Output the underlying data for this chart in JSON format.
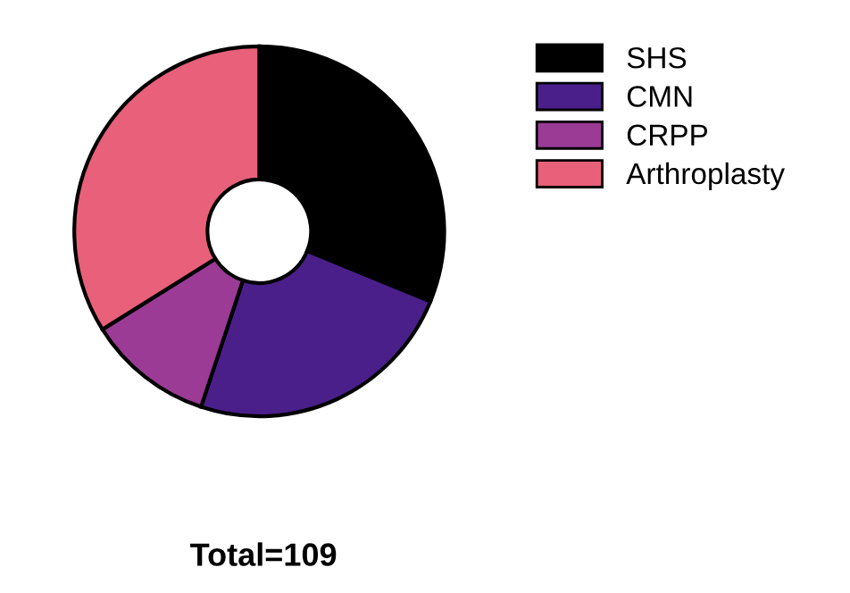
{
  "chart_data": {
    "type": "donut",
    "categories": [
      "SHS",
      "CMN",
      "CRPP",
      "Arthroplasty"
    ],
    "values": [
      31.2,
      23.9,
      11.0,
      33.9
    ],
    "colors": [
      "#000000",
      "#4b1f8a",
      "#9b3b96",
      "#e8607a"
    ],
    "legend": "right",
    "annotations": [
      "Total=109"
    ]
  }
}
